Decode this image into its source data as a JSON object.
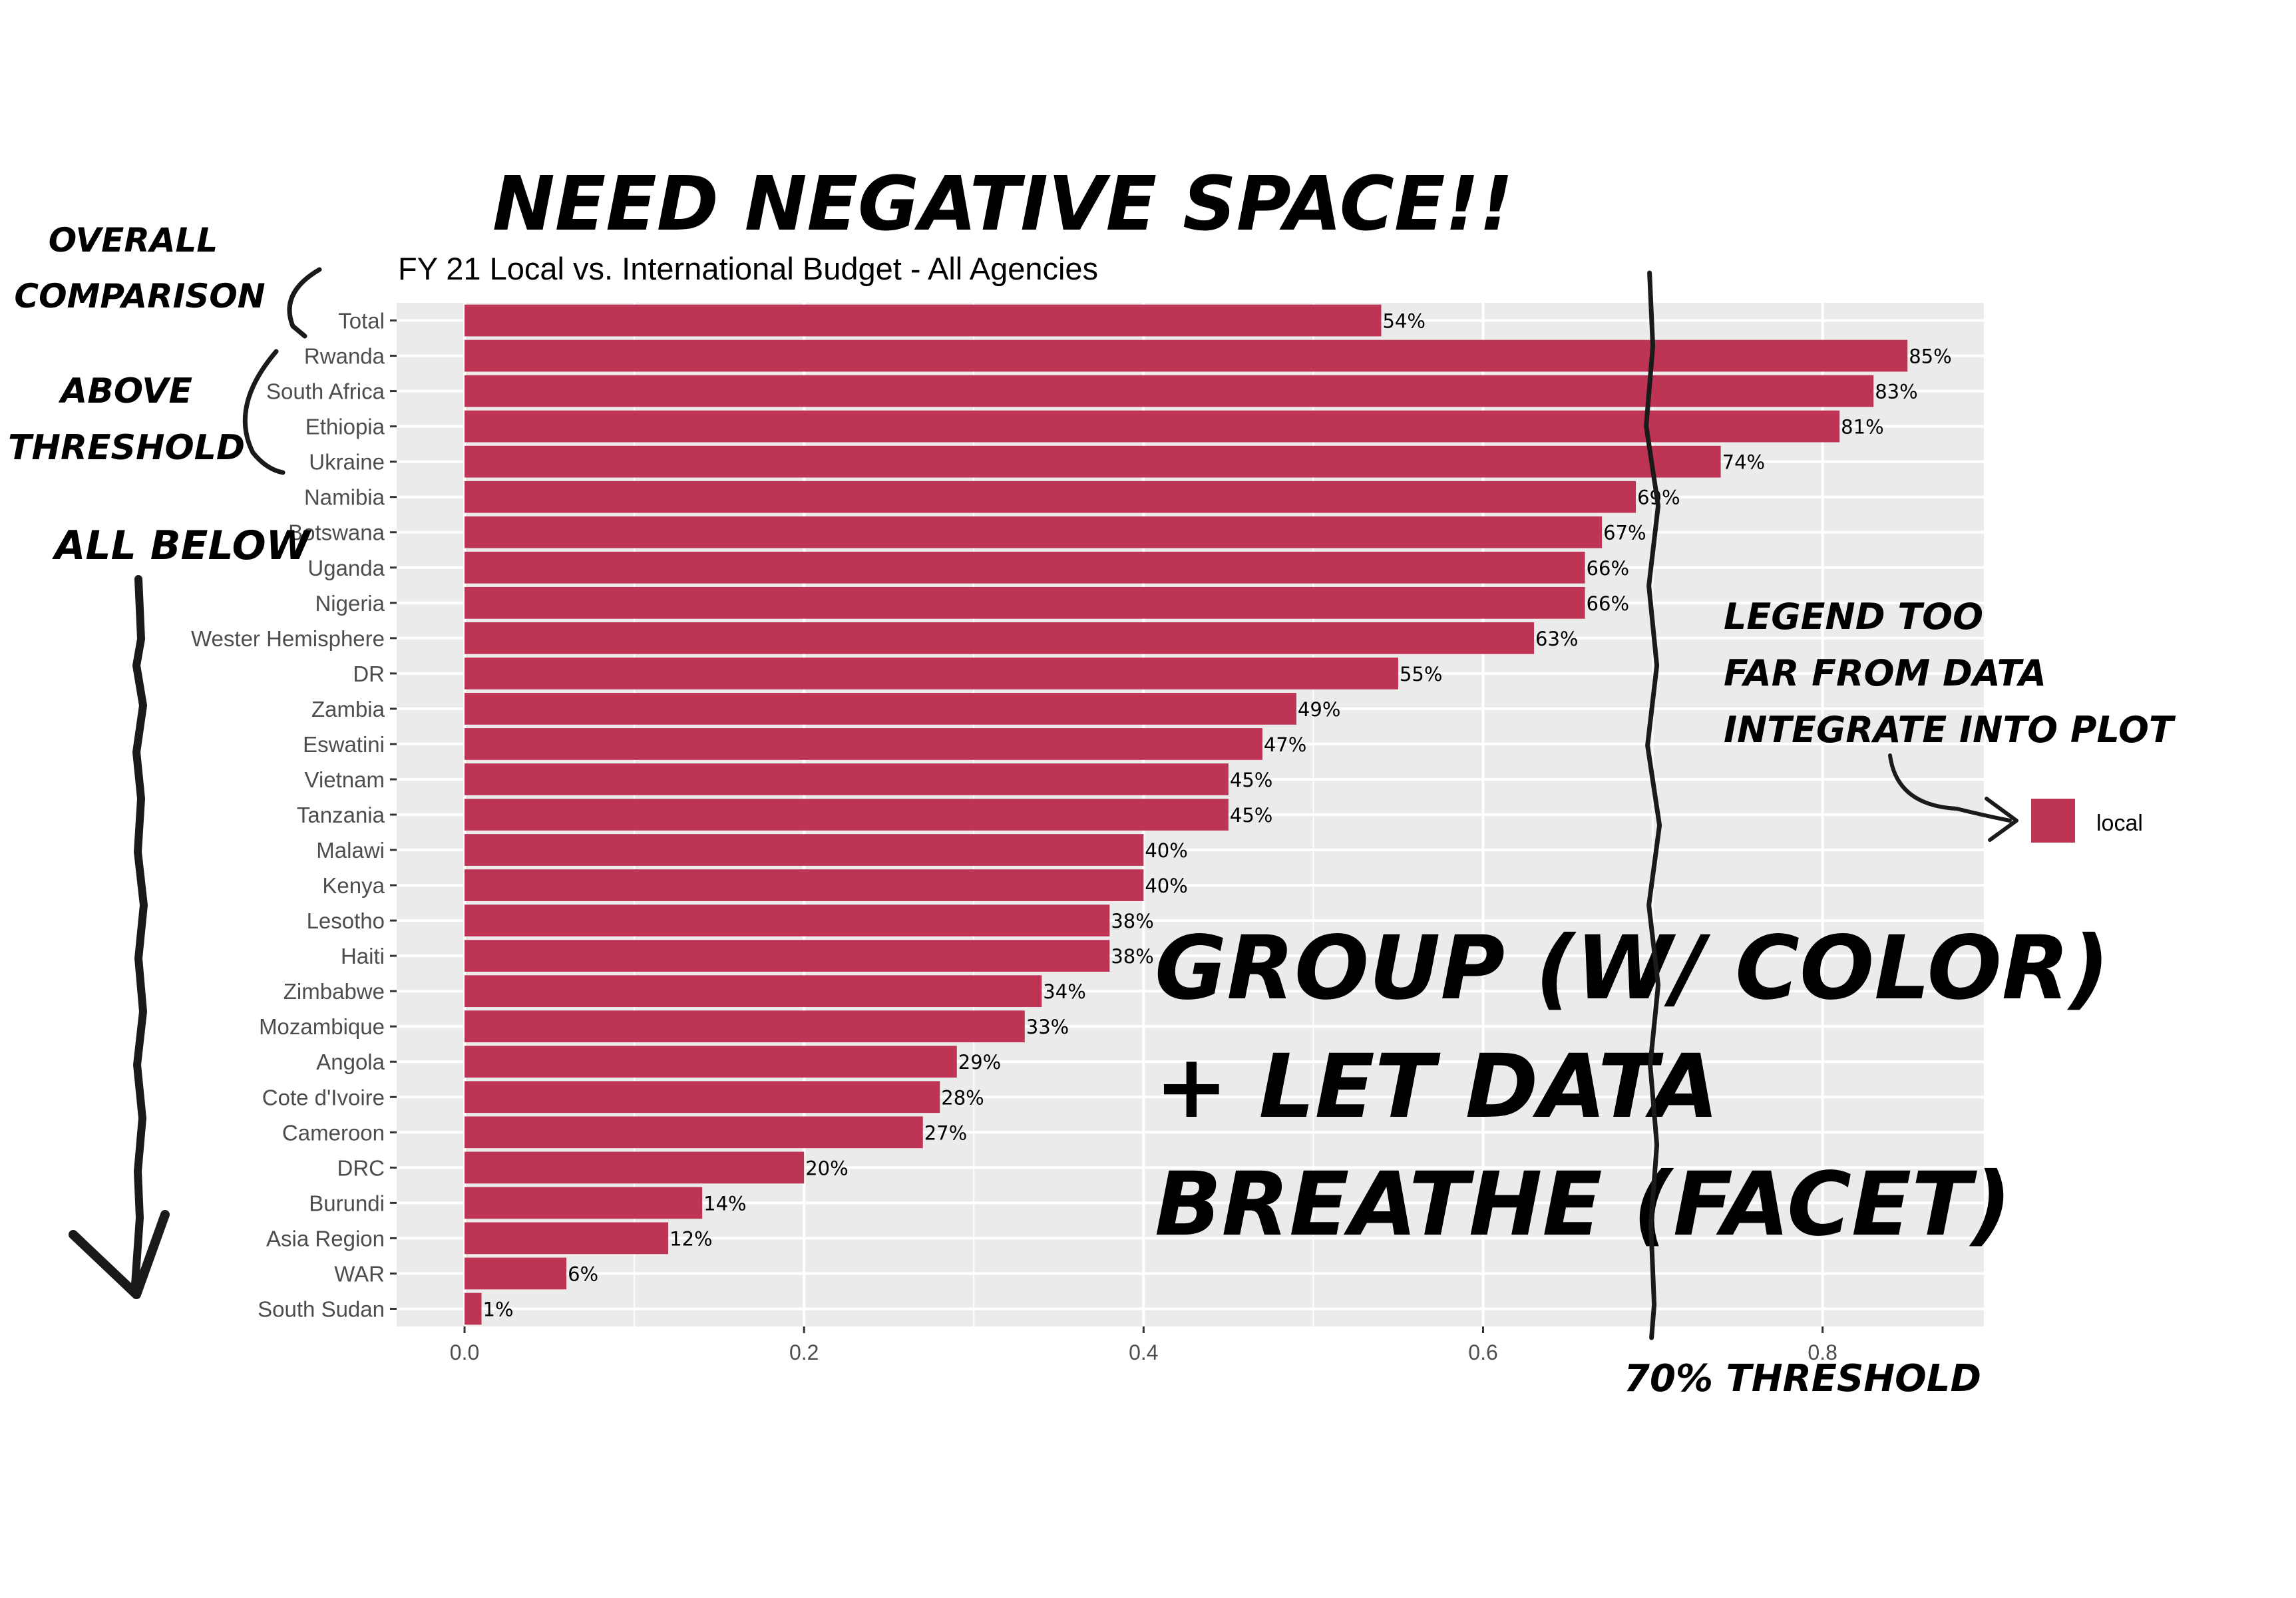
{
  "chart_data": {
    "type": "bar",
    "orientation": "horizontal",
    "title": "FY 21 Local vs. International Budget - All Agencies",
    "categories": [
      "Total",
      "Rwanda",
      "South Africa",
      "Ethiopia",
      "Ukraine",
      "Namibia",
      "Botswana",
      "Uganda",
      "Nigeria",
      "Wester Hemisphere",
      "DR",
      "Zambia",
      "Eswatini",
      "Vietnam",
      "Tanzania",
      "Malawi",
      "Kenya",
      "Lesotho",
      "Haiti",
      "Zimbabwe",
      "Mozambique",
      "Angola",
      "Cote d'Ivoire",
      "Cameroon",
      "DRC",
      "Burundi",
      "Asia Region",
      "WAR",
      "South Sudan"
    ],
    "values": [
      0.54,
      0.85,
      0.83,
      0.81,
      0.74,
      0.69,
      0.67,
      0.66,
      0.66,
      0.63,
      0.55,
      0.49,
      0.47,
      0.45,
      0.45,
      0.4,
      0.4,
      0.38,
      0.38,
      0.34,
      0.33,
      0.29,
      0.28,
      0.27,
      0.2,
      0.14,
      0.12,
      0.06,
      0.01
    ],
    "data_labels": [
      "54%",
      "85%",
      "83%",
      "81%",
      "74%",
      "69%",
      "67%",
      "66%",
      "66%",
      "63%",
      "55%",
      "49%",
      "47%",
      "45%",
      "45%",
      "40%",
      "40%",
      "38%",
      "38%",
      "34%",
      "33%",
      "29%",
      "28%",
      "27%",
      "20%",
      "14%",
      "12%",
      "6%",
      "1%"
    ],
    "x_ticks": [
      0.0,
      0.2,
      0.4,
      0.6,
      0.8
    ],
    "x_tick_labels": [
      "0.0",
      "0.2",
      "0.4",
      "0.6",
      "0.8"
    ],
    "xlim": [
      -0.04,
      0.895
    ],
    "series": [
      {
        "name": "local",
        "color": "#be3455"
      }
    ],
    "legend": {
      "label": "local",
      "placement": "right"
    },
    "grid": true,
    "panel_color": "#ebebeb",
    "threshold": {
      "value": 0.7,
      "label": "70% THRESHOLD"
    }
  },
  "annotations": {
    "headline": "NEED NEGATIVE SPACE!!",
    "overall_line1": "OVERALL",
    "overall_line2": "COMPARISON",
    "above_line1": "ABOVE",
    "above_line2": "THRESHOLD",
    "all_below": "ALL BELOW",
    "legend_note_line1": "LEGEND TOO",
    "legend_note_line2": "FAR FROM DATA",
    "legend_note_line3": "INTEGRATE INTO PLOT",
    "group_line1": "GROUP (W/ COLOR)",
    "group_line2": "+ LET DATA",
    "group_line3": "BREATHE (FACET)",
    "threshold_label": "70% THRESHOLD"
  }
}
